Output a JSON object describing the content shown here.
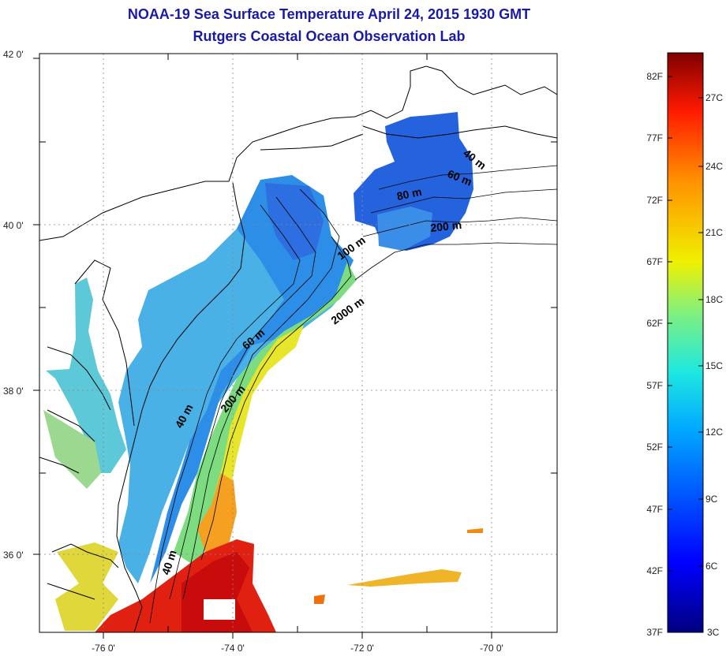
{
  "title": "NOAA-19 Sea Surface Temperature April 24, 2015 1930 GMT",
  "subtitle": "Rutgers Coastal Ocean Observation Lab",
  "map": {
    "lat_labels": [
      "42 0'",
      "40 0'",
      "38 0'",
      "36 0'"
    ],
    "lon_labels": [
      "-76 0'",
      "-74 0'",
      "-72 0'",
      "-70 0'"
    ],
    "isobath_labels": [
      "40 m",
      "60 m",
      "80 m",
      "200 m",
      "100 m",
      "2000 m",
      "60 m",
      "200 m",
      "40 m",
      "40 m"
    ]
  },
  "colorbar": {
    "fahrenheit": [
      "82F",
      "77F",
      "72F",
      "67F",
      "62F",
      "57F",
      "52F",
      "47F",
      "42F",
      "37F"
    ],
    "celsius": [
      "27C",
      "24C",
      "21C",
      "18C",
      "15C",
      "12C",
      "9C",
      "6C",
      "3C"
    ]
  },
  "colors": {
    "title": "#1a1aa8",
    "cold": "#1020b0",
    "warm": "#c00000"
  }
}
